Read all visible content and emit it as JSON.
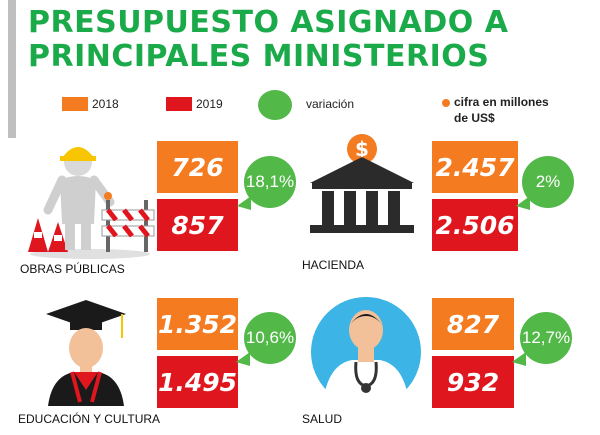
{
  "title": {
    "line1": "PRESUPUESTO ASIGNADO A",
    "line2": "PRINCIPALES MINISTERIOS"
  },
  "legend": {
    "y2018": "2018",
    "y2019": "2019",
    "variation": "variación",
    "unit": "cifra en millones de US$"
  },
  "colors": {
    "orange": "#f47b20",
    "red": "#e0161f",
    "green": "#52b848",
    "title": "#1aaa4a"
  },
  "ministries": [
    {
      "name": "OBRAS PÚBLICAS",
      "v2018": "726",
      "v2019": "857",
      "variation": "18,1%"
    },
    {
      "name": "HACIENDA",
      "v2018": "2.457",
      "v2019": "2.506",
      "variation": "2%"
    },
    {
      "name": "EDUCACIÓN Y CULTURA",
      "v2018": "1.352",
      "v2019": "1.495",
      "variation": "10,6%"
    },
    {
      "name": "SALUD",
      "v2018": "827",
      "v2019": "932",
      "variation": "12,7%"
    }
  ]
}
